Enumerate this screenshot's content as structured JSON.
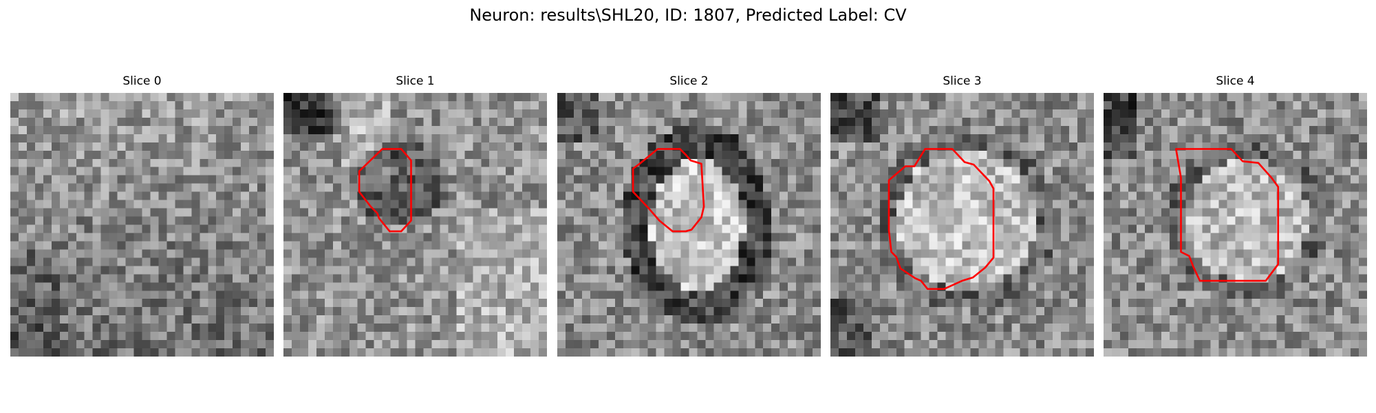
{
  "figure": {
    "title": "Neuron: results\\SHL20, ID: 1807, Predicted Label: CV"
  },
  "panels": [
    {
      "title": "Slice 0",
      "has_contour": false
    },
    {
      "title": "Slice 1",
      "has_contour": true
    },
    {
      "title": "Slice 2",
      "has_contour": true
    },
    {
      "title": "Slice 3",
      "has_contour": true
    },
    {
      "title": "Slice 4",
      "has_contour": true
    }
  ],
  "colors": {
    "contour": "#ff0000",
    "colormap": "gray"
  }
}
